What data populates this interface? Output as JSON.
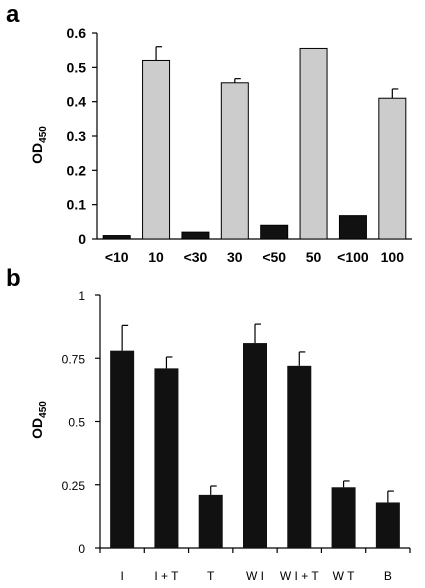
{
  "chart_data": [
    {
      "panel": "a",
      "type": "bar",
      "ylabel": "OD",
      "ylabel_sub": "450",
      "ylim": [
        0,
        0.6
      ],
      "yticks": [
        "0",
        "0.1",
        "0.2",
        "0.3",
        "0.4",
        "0.5",
        "0.6"
      ],
      "categories": [
        "<10",
        "10",
        "<30",
        "30",
        "<50",
        "50",
        "<100",
        "100"
      ],
      "values": [
        0.01,
        0.52,
        0.02,
        0.455,
        0.04,
        0.555,
        0.068,
        0.41
      ],
      "errors": [
        null,
        0.04,
        null,
        0.012,
        null,
        null,
        null,
        0.027
      ],
      "bar_colors": [
        "#111111",
        "#cccccc",
        "#111111",
        "#cccccc",
        "#111111",
        "#cccccc",
        "#111111",
        "#cccccc"
      ],
      "grid": false
    },
    {
      "panel": "b",
      "type": "bar",
      "ylabel": "OD",
      "ylabel_sub": "450",
      "ylim": [
        0,
        1
      ],
      "yticks": [
        "0",
        "0.25",
        "0.5",
        "0.75",
        "1"
      ],
      "categories": [
        "I",
        "I + T",
        "T",
        "W I",
        "W I + T",
        "W T",
        "B"
      ],
      "values": [
        0.78,
        0.71,
        0.21,
        0.81,
        0.72,
        0.24,
        0.18
      ],
      "errors": [
        0.1,
        0.045,
        0.035,
        0.075,
        0.055,
        0.025,
        0.045
      ],
      "bar_colors": [
        "#111111",
        "#111111",
        "#111111",
        "#111111",
        "#111111",
        "#111111",
        "#111111"
      ],
      "grid": false
    }
  ]
}
